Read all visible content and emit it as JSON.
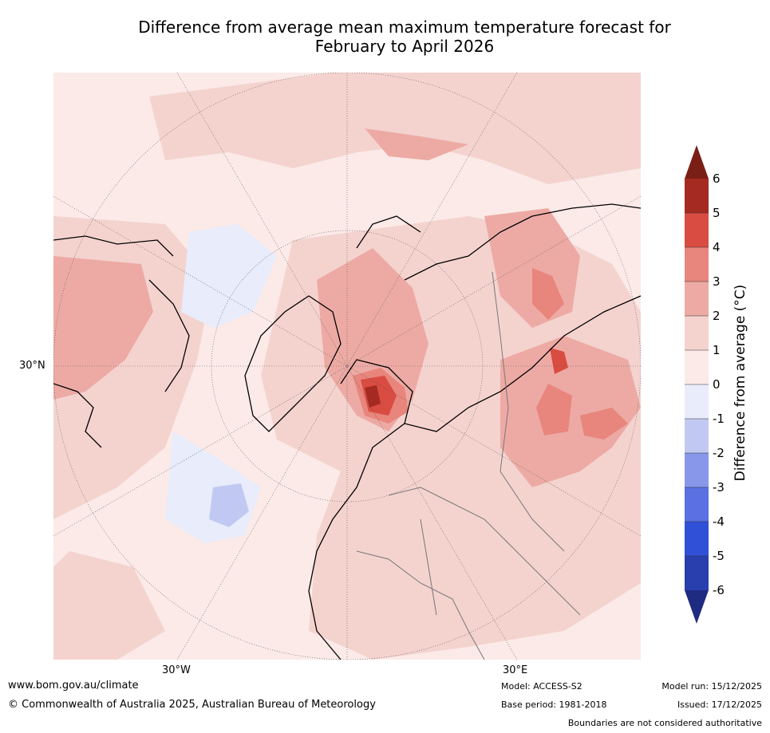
{
  "title_line1": "Difference from average mean maximum temperature forecast for",
  "title_line2": "February to April 2026",
  "map": {
    "lat_label": "30°N",
    "lon_labels": [
      "30°W",
      "30°E"
    ]
  },
  "colorbar": {
    "label": "Difference from average (°C)",
    "ticks": [
      "6",
      "5",
      "4",
      "3",
      "2",
      "1",
      "0",
      "-1",
      "-2",
      "-3",
      "-4",
      "-5",
      "-6"
    ],
    "colors": {
      "over": "#7a1f16",
      "c5_6": "#a52a22",
      "c4_5": "#d94c41",
      "c3_4": "#e8857c",
      "c2_3": "#edaaa4",
      "c1_2": "#f4d3cf",
      "c0_1": "#fbeae8",
      "cm1_0": "#e8ecfb",
      "cm2_m1": "#c1c9f2",
      "cm3_m2": "#8897ea",
      "cm4_m3": "#5b70e2",
      "cm5_m4": "#3050d8",
      "cm6_m5": "#2a3fae",
      "under": "#1f2b80"
    }
  },
  "footer": {
    "website": "www.bom.gov.au/climate",
    "copyright": "© Commonwealth of Australia 2025, Australian Bureau of Meteorology",
    "model": "Model: ACCESS-S2",
    "base_period": "Base period: 1981-2018",
    "model_run": "Model run: 15/12/2025",
    "issued": "Issued: 17/12/2025",
    "disclaimer": "Boundaries are not considered authoritative"
  }
}
